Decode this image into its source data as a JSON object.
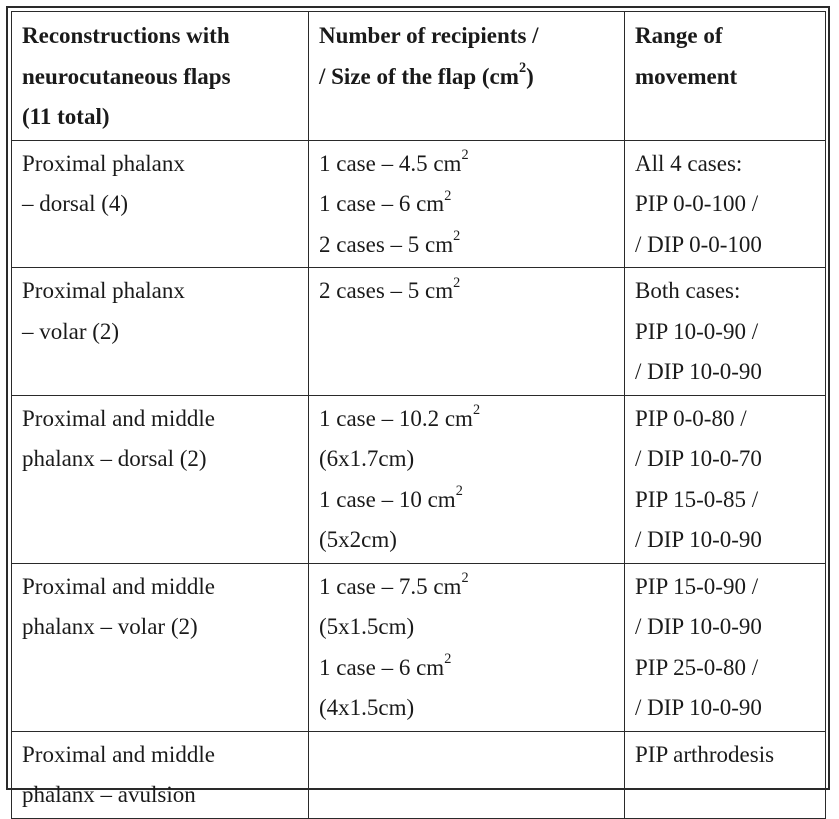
{
  "table": {
    "headers": [
      [
        "Reconstructions with",
        "neurocutaneous flaps",
        "(11 total)"
      ],
      [
        "Number of recipients /",
        "/ Size of the flap (cm",
        "2",
        ")"
      ],
      [
        "Range of",
        "movement"
      ]
    ],
    "rows": [
      {
        "recon": [
          "Proximal phalanx",
          "– dorsal (4)"
        ],
        "size": [
          {
            "text": "1 case – 4.5 cm",
            "sup": "2"
          },
          {
            "text": "1 case – 6 cm",
            "sup": "2"
          },
          {
            "text": "2 cases – 5 cm",
            "sup": "2"
          }
        ],
        "movement": [
          "All 4 cases:",
          "PIP 0-0-100 /",
          "/ DIP 0-0-100"
        ]
      },
      {
        "recon": [
          "Proximal phalanx",
          "– volar (2)"
        ],
        "size": [
          {
            "text": "2 cases – 5 cm",
            "sup": "2"
          }
        ],
        "movement": [
          "Both cases:",
          "PIP 10-0-90 /",
          "/ DIP 10-0-90"
        ]
      },
      {
        "recon": [
          "Proximal and middle",
          "phalanx – dorsal (2)"
        ],
        "size": [
          {
            "text": "1 case – 10.2 cm",
            "sup": "2"
          },
          {
            "text": "(6x1.7cm)",
            "sup": ""
          },
          {
            "text": "1 case – 10 cm",
            "sup": "2"
          },
          {
            "text": "(5x2cm)",
            "sup": ""
          }
        ],
        "movement": [
          "PIP 0-0-80 /",
          "/ DIP 10-0-70",
          "PIP 15-0-85 /",
          "/ DIP 10-0-90"
        ]
      },
      {
        "recon": [
          "Proximal and middle",
          "phalanx – volar (2)"
        ],
        "size": [
          {
            "text": "1 case – 7.5 cm",
            "sup": "2"
          },
          {
            "text": "(5x1.5cm)",
            "sup": ""
          },
          {
            "text": "1 case – 6 cm",
            "sup": "2"
          },
          {
            "text": "(4x1.5cm)",
            "sup": ""
          }
        ],
        "movement": [
          "PIP 15-0-90 /",
          "/ DIP 10-0-90",
          "PIP 25-0-80 /",
          "/ DIP 10-0-90"
        ]
      },
      {
        "recon": [
          "Proximal and middle",
          "phalanx – avulsion"
        ],
        "size": [],
        "movement": [
          "PIP arthrodesis"
        ]
      }
    ]
  }
}
